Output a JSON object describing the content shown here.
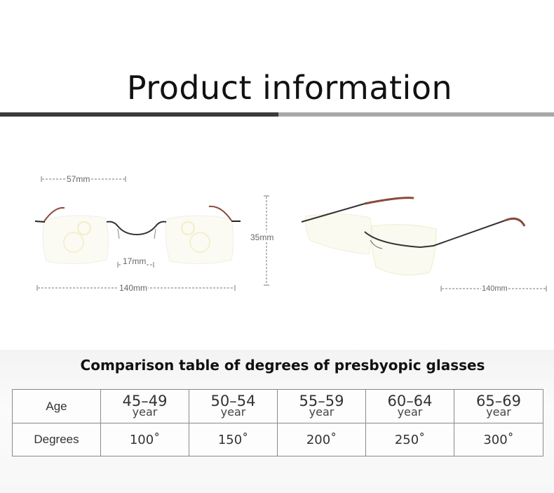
{
  "header": {
    "title": "Product information"
  },
  "dimensions": {
    "lens_width": "57mm",
    "bridge": "17mm",
    "frame_width": "140mm",
    "lens_height": "35mm",
    "temple_length": "140mm"
  },
  "table": {
    "title": "Comparison table of degrees of presbyopic glasses",
    "age_label": "Age",
    "degrees_label": "Degrees",
    "ages": [
      {
        "range": "45–49",
        "unit": "year"
      },
      {
        "range": "50–54",
        "unit": "year"
      },
      {
        "range": "55–59",
        "unit": "year"
      },
      {
        "range": "60–64",
        "unit": "year"
      },
      {
        "range": "65–69",
        "unit": "year"
      }
    ],
    "degrees": [
      "100˚",
      "150˚",
      "200˚",
      "250˚",
      "300˚"
    ]
  }
}
